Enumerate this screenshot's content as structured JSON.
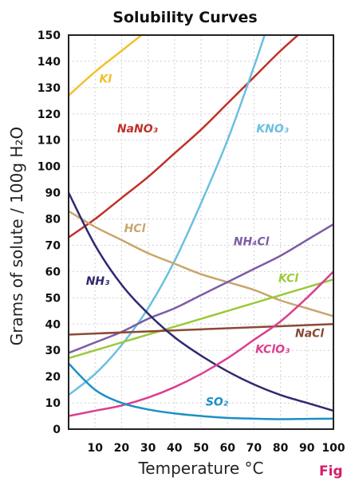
{
  "chart_data": {
    "type": "line",
    "title": "Solubility Curves",
    "xlabel": "Temperature °C",
    "ylabel": "Grams of solute / 100g H₂O",
    "xlim": [
      0,
      100
    ],
    "ylim": [
      0,
      150
    ],
    "x_ticks": [
      "10",
      "20",
      "30",
      "40",
      "50",
      "60",
      "70",
      "80",
      "90",
      "100"
    ],
    "y_ticks": [
      "0",
      "10",
      "20",
      "30",
      "40",
      "50",
      "60",
      "70",
      "80",
      "90",
      "100",
      "110",
      "120",
      "130",
      "140",
      "150"
    ],
    "grid": true,
    "fig_label": "Fig",
    "series": [
      {
        "name": "KI",
        "color": "#f2c12e",
        "x": [
          0,
          10,
          20,
          30
        ],
        "y": [
          127,
          136,
          144,
          152
        ]
      },
      {
        "name": "NaNO₃",
        "color": "#c0302a",
        "x": [
          0,
          10,
          20,
          30,
          40,
          50,
          60,
          70,
          80,
          90
        ],
        "y": [
          73,
          80,
          88,
          96,
          105,
          114,
          124,
          134,
          144,
          153
        ]
      },
      {
        "name": "KNO₃",
        "color": "#6bbfe0",
        "x": [
          0,
          10,
          20,
          30,
          40,
          50,
          60,
          70,
          75
        ],
        "y": [
          13,
          21,
          32,
          46,
          64,
          86,
          110,
          138,
          153
        ]
      },
      {
        "name": "HCl",
        "color": "#c9a66b",
        "x": [
          0,
          10,
          20,
          30,
          40,
          50,
          60,
          70,
          80,
          90,
          100
        ],
        "y": [
          83,
          77,
          72,
          67,
          63,
          59,
          56,
          53,
          49,
          46,
          43
        ]
      },
      {
        "name": "NH₄Cl",
        "color": "#7c5da6",
        "x": [
          0,
          10,
          20,
          30,
          40,
          50,
          60,
          70,
          80,
          90,
          100
        ],
        "y": [
          29,
          33,
          37,
          42,
          46,
          51,
          56,
          61,
          66,
          72,
          78
        ]
      },
      {
        "name": "KCl",
        "color": "#9bc93a",
        "x": [
          0,
          10,
          20,
          30,
          40,
          50,
          60,
          70,
          80,
          90,
          100
        ],
        "y": [
          27,
          30,
          33,
          36,
          39,
          42,
          45,
          48,
          51,
          54,
          57
        ]
      },
      {
        "name": "NaCl",
        "color": "#8a4a35",
        "x": [
          0,
          100
        ],
        "y": [
          36,
          40
        ]
      },
      {
        "name": "NH₃",
        "color": "#2e2970",
        "x": [
          0,
          10,
          20,
          30,
          40,
          50,
          60,
          70,
          80,
          90,
          100
        ],
        "y": [
          90,
          70,
          55,
          44,
          35,
          28,
          22,
          17,
          13,
          10,
          7
        ]
      },
      {
        "name": "KClO₃",
        "color": "#d93f8f",
        "x": [
          0,
          10,
          20,
          30,
          40,
          50,
          60,
          70,
          80,
          90,
          100
        ],
        "y": [
          5,
          7,
          9,
          12,
          16,
          21,
          27,
          34,
          41,
          50,
          60
        ]
      },
      {
        "name": "SO₂",
        "color": "#1a8fc8",
        "x": [
          0,
          10,
          20,
          30,
          40,
          50,
          60,
          70,
          80,
          90,
          100
        ],
        "y": [
          25,
          15,
          10,
          7.5,
          6,
          5,
          4.3,
          4,
          3.8,
          3.9,
          4
        ]
      }
    ]
  }
}
